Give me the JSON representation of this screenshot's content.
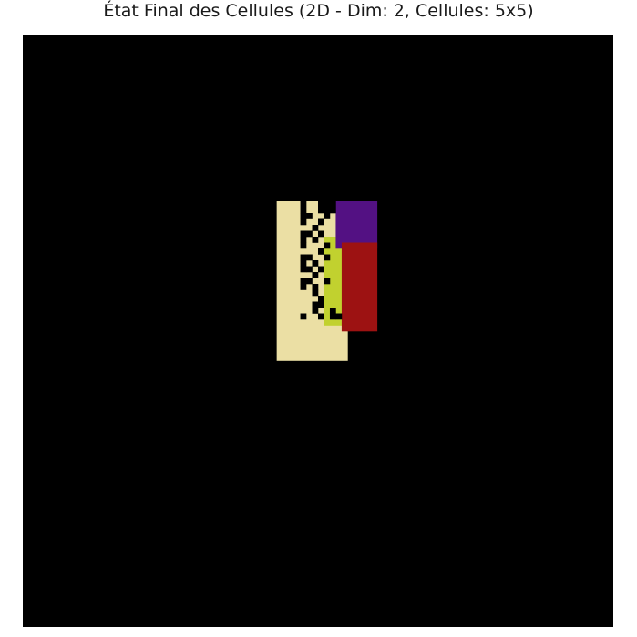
{
  "chart_data": {
    "type": "heatmap",
    "title": "État Final des Cellules (2D - Dim: 2, Cellules: 5x5)",
    "xlabel": "",
    "ylabel": "",
    "grid": false,
    "axes_visible": false,
    "grid_size": [
      100,
      100
    ],
    "background_color": "#000000",
    "palette": {
      "1": "#ebdfa4",
      "2": "#c1d12f",
      "3": "#531183",
      "4": "#9d1212"
    },
    "rects": [
      {
        "v": 1,
        "x0": 43,
        "y0": 28,
        "x1": 55,
        "y1": 55
      },
      {
        "v": 2,
        "x0": 51,
        "y0": 34,
        "x1": 54,
        "y1": 49
      },
      {
        "v": 3,
        "x0": 53,
        "y0": 28,
        "x1": 60,
        "y1": 36
      },
      {
        "v": 4,
        "x0": 54,
        "y0": 35,
        "x1": 60,
        "y1": 50
      }
    ],
    "black_cells": [
      [
        47,
        28
      ],
      [
        50,
        28
      ],
      [
        51,
        28
      ],
      [
        52,
        28
      ],
      [
        47,
        29
      ],
      [
        50,
        29
      ],
      [
        51,
        29
      ],
      [
        52,
        29
      ],
      [
        47,
        30
      ],
      [
        48,
        30
      ],
      [
        51,
        30
      ],
      [
        47,
        31
      ],
      [
        50,
        31
      ],
      [
        49,
        32
      ],
      [
        47,
        33
      ],
      [
        48,
        33
      ],
      [
        50,
        33
      ],
      [
        47,
        34
      ],
      [
        49,
        34
      ],
      [
        47,
        35
      ],
      [
        51,
        35
      ],
      [
        50,
        36
      ],
      [
        47,
        37
      ],
      [
        48,
        37
      ],
      [
        51,
        37
      ],
      [
        47,
        38
      ],
      [
        49,
        38
      ],
      [
        47,
        39
      ],
      [
        48,
        39
      ],
      [
        50,
        39
      ],
      [
        49,
        40
      ],
      [
        47,
        41
      ],
      [
        48,
        41
      ],
      [
        51,
        41
      ],
      [
        47,
        42
      ],
      [
        49,
        42
      ],
      [
        49,
        43
      ],
      [
        50,
        44
      ],
      [
        49,
        45
      ],
      [
        50,
        45
      ],
      [
        49,
        46
      ],
      [
        52,
        46
      ],
      [
        47,
        47
      ],
      [
        50,
        47
      ],
      [
        52,
        47
      ],
      [
        53,
        47
      ]
    ]
  }
}
